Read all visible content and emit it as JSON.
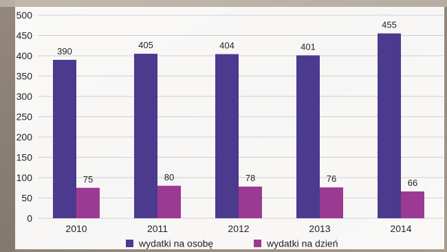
{
  "chart_data": {
    "type": "bar",
    "categories": [
      "2010",
      "2011",
      "2012",
      "2013",
      "2014"
    ],
    "series": [
      {
        "name": "wydatki na osobę",
        "values": [
          390,
          405,
          404,
          401,
          455
        ],
        "color": "#4b3a8e"
      },
      {
        "name": "wydatki na dzień",
        "values": [
          75,
          80,
          78,
          76,
          66
        ],
        "color": "#9b3a93"
      }
    ],
    "ylim": [
      0,
      500
    ],
    "yticks": [
      "0",
      "50",
      "100",
      "150",
      "200",
      "250",
      "300",
      "350",
      "400",
      "450",
      "500"
    ],
    "grid": true,
    "legend_position": "bottom",
    "title": "",
    "xlabel": "",
    "ylabel": ""
  }
}
